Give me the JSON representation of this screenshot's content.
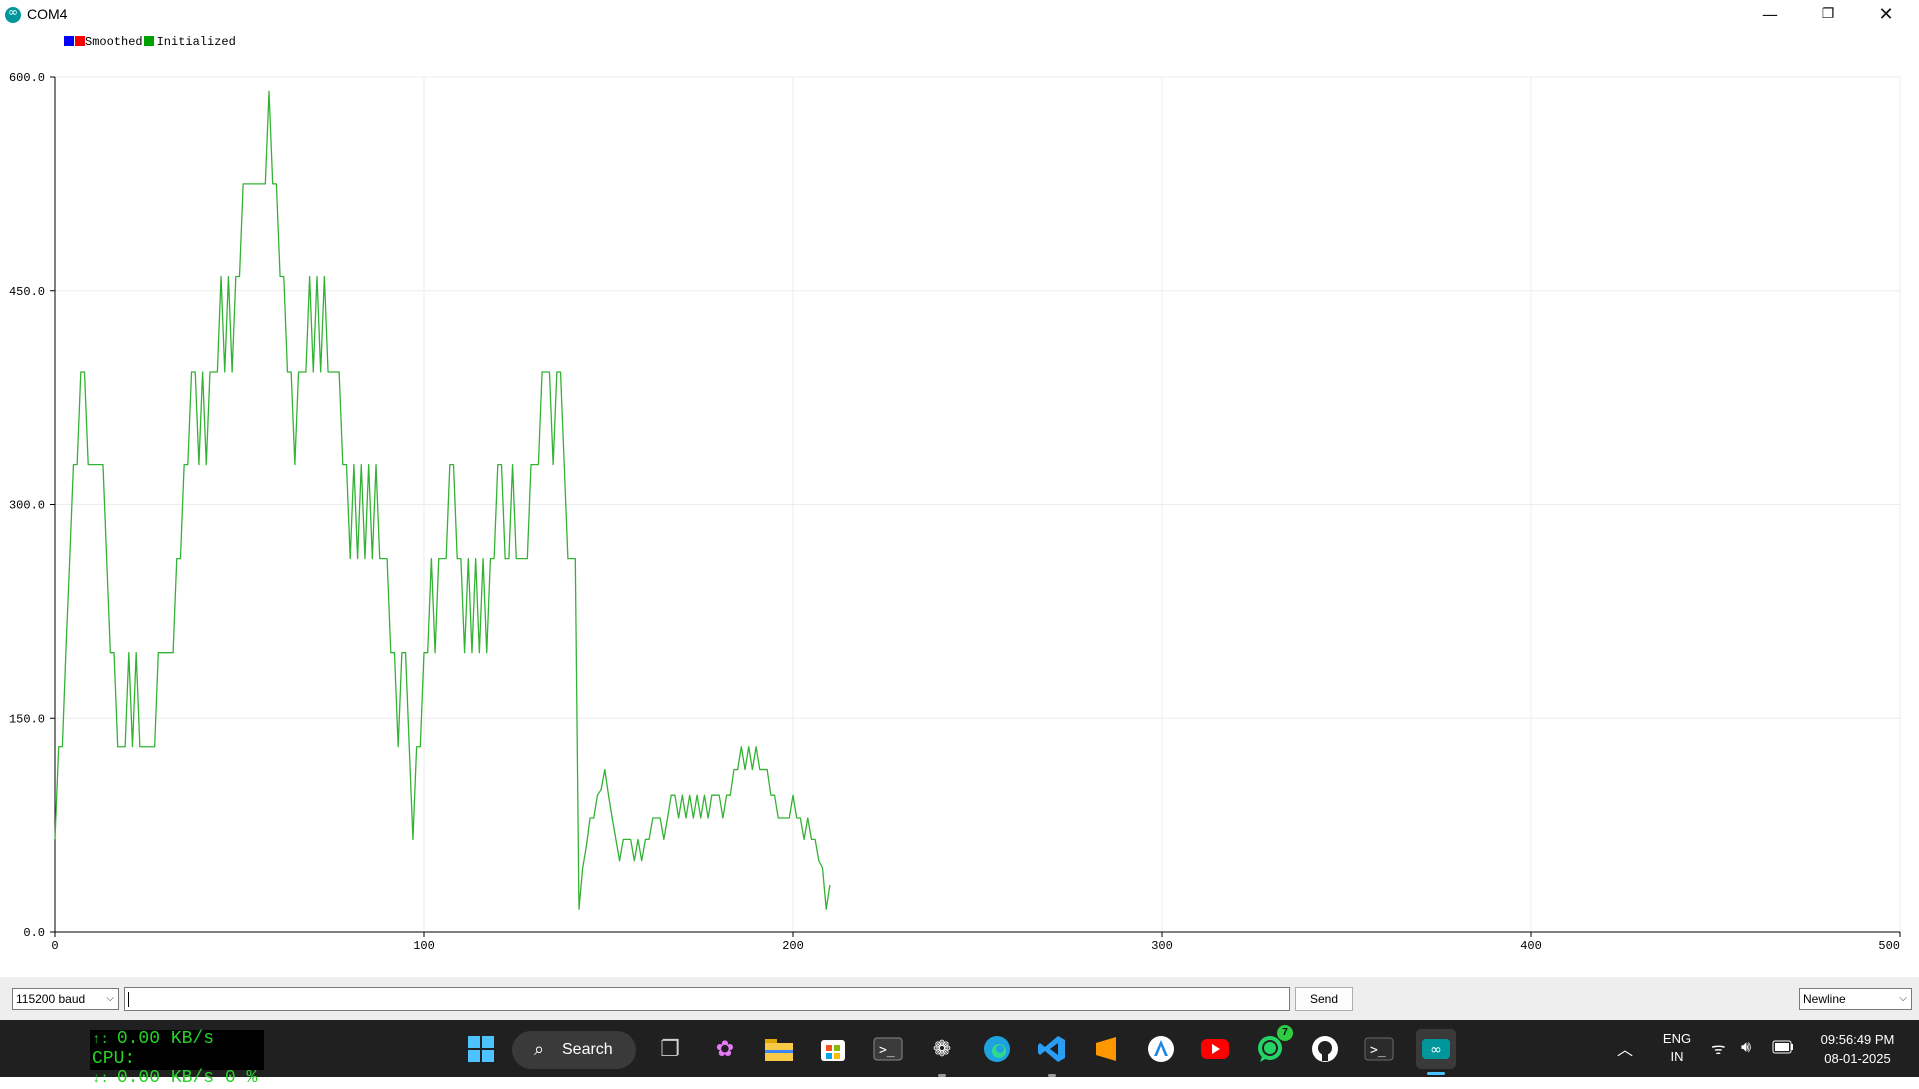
{
  "window": {
    "title": "COM4",
    "controls": {
      "minimize_icon": "minimize-icon",
      "maximize_icon": "restore-icon",
      "close_icon": "close-icon"
    }
  },
  "legend": {
    "entries": [
      {
        "label": "Smoothed",
        "colors": [
          "#0000ff",
          "#ff0000"
        ]
      },
      {
        "label": "Initialized",
        "colors": [
          "#00a000"
        ]
      }
    ]
  },
  "chart_data": {
    "type": "line",
    "xlim": [
      0,
      500
    ],
    "ylim": [
      0,
      600
    ],
    "x_ticks": [
      "0",
      "100",
      "200",
      "300",
      "400",
      "500"
    ],
    "y_ticks": [
      "0.0",
      "150.0",
      "300.0",
      "450.0",
      "600.0"
    ],
    "grid": true,
    "legend_position": "top-left",
    "series": [
      {
        "name": "Initialized",
        "color": "#33b233",
        "values": [
          65,
          130,
          130,
          200,
          262,
          328,
          328,
          393,
          393,
          328,
          328,
          328,
          328,
          328,
          262,
          196,
          196,
          130,
          130,
          130,
          196,
          130,
          196,
          130,
          130,
          130,
          130,
          130,
          196,
          196,
          196,
          196,
          196,
          262,
          262,
          328,
          328,
          393,
          393,
          328,
          393,
          328,
          393,
          393,
          393,
          460,
          393,
          460,
          393,
          460,
          460,
          525,
          525,
          525,
          525,
          525,
          525,
          525,
          590,
          525,
          525,
          460,
          460,
          393,
          393,
          328,
          393,
          393,
          393,
          460,
          393,
          460,
          393,
          460,
          393,
          393,
          393,
          393,
          328,
          328,
          262,
          328,
          262,
          328,
          262,
          328,
          262,
          328,
          262,
          262,
          262,
          196,
          196,
          130,
          196,
          196,
          130,
          65,
          130,
          130,
          196,
          196,
          262,
          196,
          262,
          262,
          262,
          328,
          328,
          262,
          262,
          196,
          262,
          196,
          262,
          196,
          262,
          196,
          262,
          262,
          328,
          328,
          262,
          262,
          328,
          262,
          262,
          262,
          262,
          328,
          328,
          328,
          393,
          393,
          393,
          328,
          393,
          393,
          328,
          262,
          262,
          262,
          16,
          45,
          60,
          80,
          80,
          96,
          100,
          114,
          96,
          80,
          65,
          50,
          65,
          65,
          65,
          50,
          65,
          50,
          65,
          65,
          80,
          80,
          80,
          65,
          80,
          96,
          96,
          80,
          96,
          80,
          96,
          80,
          96,
          80,
          96,
          80,
          96,
          96,
          96,
          80,
          96,
          96,
          114,
          114,
          130,
          114,
          130,
          114,
          130,
          114,
          114,
          114,
          96,
          96,
          80,
          80,
          80,
          80,
          96,
          80,
          80,
          65,
          80,
          65,
          65,
          50,
          45,
          16,
          33
        ]
      }
    ]
  },
  "controls": {
    "baud": "115200 baud",
    "input_value": "",
    "send_label": "Send",
    "line_ending": "Newline"
  },
  "taskbar": {
    "net_widget": {
      "up_arrow": "↑:",
      "up": "0.00 KB/s",
      "cpu_label": "CPU:",
      "down_arrow": "↓:",
      "down": "0.00 KB/s",
      "cpu_value": "0 %"
    },
    "search_label": "Search",
    "apps": [
      "start-icon",
      "task-view-icon",
      "copilot-icon",
      "file-explorer-icon",
      "store-icon",
      "terminal-icon",
      "chatgpt-icon",
      "edge-icon",
      "vscode-icon",
      "sublime-icon",
      "app-store-icon",
      "youtube-icon",
      "whatsapp-icon",
      "github-icon",
      "powershell-icon",
      "arduino-icon"
    ],
    "whatsapp_badge": "7",
    "language": {
      "lang": "ENG",
      "region": "IN"
    },
    "clock": {
      "time": "09:56:49 PM",
      "date": "08-01-2025"
    }
  }
}
